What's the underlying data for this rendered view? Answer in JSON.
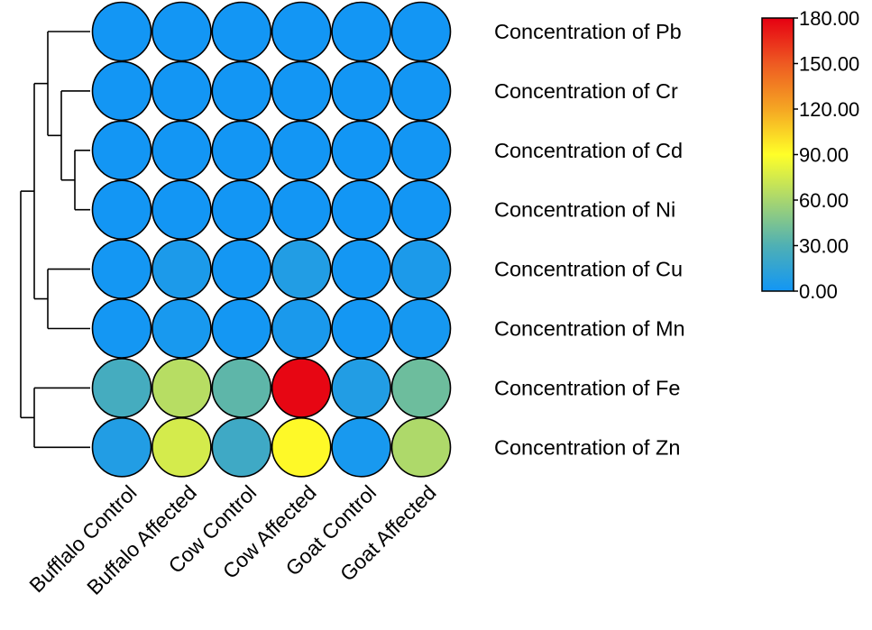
{
  "chart_data": {
    "type": "heatmap",
    "title": "",
    "columns": [
      "Bufflalo Control",
      "Buffalo Affected",
      "Cow Control",
      "Cow Affected",
      "Goat Control",
      "Goat Affected"
    ],
    "rows": [
      "Concentration of Pb",
      "Concentration of Cr",
      "Concentration of Cd",
      "Concentration of Ni",
      "Concentration of Cu",
      "Concentration of Mn",
      "Concentration of Fe",
      "Concentration of Zn"
    ],
    "values": [
      [
        0.5,
        0.5,
        0.5,
        0.5,
        0.3,
        0.5
      ],
      [
        0.5,
        0.5,
        0.5,
        0.5,
        0.3,
        0.5
      ],
      [
        0.3,
        0.5,
        0.3,
        0.5,
        0.2,
        0.5
      ],
      [
        0.3,
        0.3,
        0.3,
        0.3,
        0.2,
        0.3
      ],
      [
        1,
        5,
        1,
        8,
        1,
        5
      ],
      [
        1,
        3,
        1,
        4,
        1,
        2
      ],
      [
        25,
        65,
        35,
        178,
        8,
        40
      ],
      [
        8,
        75,
        22,
        92,
        3,
        62
      ]
    ],
    "colorbar": {
      "range": [
        0,
        180
      ],
      "ticks": [
        "0.00",
        "30.00",
        "60.00",
        "90.00",
        "120.00",
        "150.00",
        "180.00"
      ],
      "colors": [
        "#1296f5",
        "#4fb0b4",
        "#a8d66f",
        "#ffff28",
        "#f5a623",
        "#ee5a22",
        "#e60012"
      ]
    },
    "row_dendrogram": "((Pb,(Cr,(Cd,Ni))),(Cu,Mn)),(Fe,Zn)",
    "legend_placement": "top-right"
  }
}
